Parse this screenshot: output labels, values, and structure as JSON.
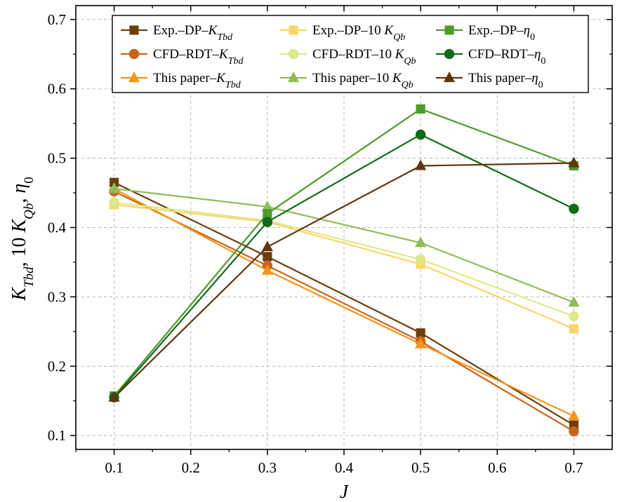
{
  "chart_data": {
    "type": "line",
    "xlabel": "J",
    "ylabel_parts": [
      {
        "t": "K",
        "italic": true
      },
      {
        "t": "Tbd",
        "italic": true,
        "sub": true
      },
      {
        "t": ", 10 "
      },
      {
        "t": "K",
        "italic": true
      },
      {
        "t": "Qb",
        "italic": true,
        "sub": true
      },
      {
        "t": ", "
      },
      {
        "t": "η",
        "italic": true
      },
      {
        "t": "0",
        "sub": true
      }
    ],
    "x_ticks": [
      "0.1",
      "0.2",
      "0.3",
      "0.4",
      "0.5",
      "0.6",
      "0.7"
    ],
    "y_ticks": [
      "0.1",
      "0.2",
      "0.3",
      "0.4",
      "0.5",
      "0.6",
      "0.7"
    ],
    "xlim": [
      0.05,
      0.75
    ],
    "ylim": [
      0.08,
      0.72
    ],
    "grid": true,
    "legend_position": "top",
    "series": [
      {
        "name": "Exp.–DP–K_Tbd",
        "label_parts": [
          {
            "t": "Exp.–DP–"
          },
          {
            "t": "K",
            "italic": true
          },
          {
            "t": "Tbd",
            "italic": true,
            "sub": true
          }
        ],
        "marker": "square",
        "color": "#6b3f0c",
        "x": [
          0.1,
          0.3,
          0.5,
          0.7
        ],
        "y": [
          0.465,
          0.358,
          0.248,
          0.115
        ]
      },
      {
        "name": "CFD–RDT–K_Tbd",
        "label_parts": [
          {
            "t": "CFD–RDT–"
          },
          {
            "t": "K",
            "italic": true
          },
          {
            "t": "Tbd",
            "italic": true,
            "sub": true
          }
        ],
        "marker": "circle",
        "color": "#c8641c",
        "x": [
          0.1,
          0.3,
          0.5,
          0.7
        ],
        "y": [
          0.452,
          0.345,
          0.236,
          0.106
        ]
      },
      {
        "name": "This paper–K_Tbd",
        "label_parts": [
          {
            "t": "This paper–"
          },
          {
            "t": "K",
            "italic": true
          },
          {
            "t": "Tbd",
            "italic": true,
            "sub": true
          }
        ],
        "marker": "triangle",
        "color": "#f7941d",
        "x": [
          0.1,
          0.3,
          0.5,
          0.7
        ],
        "y": [
          0.456,
          0.338,
          0.232,
          0.128
        ]
      },
      {
        "name": "Exp.–DP–10 K_Qb",
        "label_parts": [
          {
            "t": "Exp.–DP–10 "
          },
          {
            "t": "K",
            "italic": true
          },
          {
            "t": "Qb",
            "italic": true,
            "sub": true
          }
        ],
        "marker": "square",
        "color": "#f9d66c",
        "x": [
          0.1,
          0.3,
          0.5,
          0.7
        ],
        "y": [
          0.433,
          0.408,
          0.347,
          0.254
        ]
      },
      {
        "name": "CFD–RDT–10 K_Qb",
        "label_parts": [
          {
            "t": "CFD–RDT–10 "
          },
          {
            "t": "K",
            "italic": true
          },
          {
            "t": "Qb",
            "italic": true,
            "sub": true
          }
        ],
        "marker": "circle",
        "color": "#dfe88a",
        "x": [
          0.1,
          0.3,
          0.5,
          0.7
        ],
        "y": [
          0.436,
          0.41,
          0.354,
          0.272
        ]
      },
      {
        "name": "This paper–10 K_Qb",
        "label_parts": [
          {
            "t": "This paper–10 "
          },
          {
            "t": "K",
            "italic": true
          },
          {
            "t": "Qb",
            "italic": true,
            "sub": true
          }
        ],
        "marker": "triangle",
        "color": "#8ebe55",
        "x": [
          0.1,
          0.3,
          0.5,
          0.7
        ],
        "y": [
          0.456,
          0.43,
          0.378,
          0.292
        ]
      },
      {
        "name": "Exp.–DP–η0",
        "label_parts": [
          {
            "t": "Exp.–DP–"
          },
          {
            "t": "η",
            "italic": true
          },
          {
            "t": "0",
            "sub": true
          }
        ],
        "marker": "square",
        "color": "#4e9a2c",
        "x": [
          0.1,
          0.3,
          0.5,
          0.7
        ],
        "y": [
          0.157,
          0.42,
          0.571,
          0.489
        ]
      },
      {
        "name": "CFD–RDT–η0",
        "label_parts": [
          {
            "t": "CFD–RDT–"
          },
          {
            "t": "η",
            "italic": true
          },
          {
            "t": "0",
            "sub": true
          }
        ],
        "marker": "circle",
        "color": "#0f6a1a",
        "x": [
          0.1,
          0.3,
          0.5,
          0.7
        ],
        "y": [
          0.155,
          0.408,
          0.534,
          0.427
        ]
      },
      {
        "name": "This paper–η0",
        "label_parts": [
          {
            "t": "This paper–"
          },
          {
            "t": "η",
            "italic": true
          },
          {
            "t": "0",
            "sub": true
          }
        ],
        "marker": "triangle",
        "color": "#5e3710",
        "x": [
          0.1,
          0.3,
          0.5,
          0.7
        ],
        "y": [
          0.155,
          0.372,
          0.489,
          0.493
        ]
      }
    ]
  }
}
